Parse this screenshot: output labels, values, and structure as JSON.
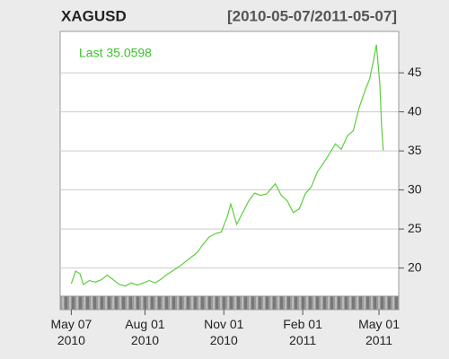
{
  "chart_data": {
    "type": "line",
    "title": "XAGUSD",
    "subtitle": "[2010-05-07/2011-05-07]",
    "annotation": "Last 35.0598",
    "x": [
      "2010-05-07",
      "2010-05-12",
      "2010-05-17",
      "2010-05-21",
      "2010-05-28",
      "2010-06-04",
      "2010-06-11",
      "2010-06-18",
      "2010-06-25",
      "2010-07-02",
      "2010-07-09",
      "2010-07-16",
      "2010-07-23",
      "2010-07-30",
      "2010-08-06",
      "2010-08-13",
      "2010-08-20",
      "2010-08-27",
      "2010-09-03",
      "2010-09-10",
      "2010-09-17",
      "2010-09-24",
      "2010-10-01",
      "2010-10-08",
      "2010-10-15",
      "2010-10-22",
      "2010-10-29",
      "2010-11-05",
      "2010-11-09",
      "2010-11-16",
      "2010-11-23",
      "2010-11-30",
      "2010-12-07",
      "2010-12-14",
      "2010-12-21",
      "2010-12-31",
      "2011-01-07",
      "2011-01-14",
      "2011-01-21",
      "2011-01-28",
      "2011-02-04",
      "2011-02-11",
      "2011-02-18",
      "2011-02-25",
      "2011-03-04",
      "2011-03-11",
      "2011-03-18",
      "2011-03-25",
      "2011-04-01",
      "2011-04-08",
      "2011-04-15",
      "2011-04-20",
      "2011-04-25",
      "2011-04-28",
      "2011-05-02",
      "2011-05-04",
      "2011-05-06"
    ],
    "series": [
      {
        "name": "XAGUSD",
        "color": "#5cce3c",
        "values": [
          18.0,
          19.6,
          19.3,
          17.9,
          18.4,
          18.2,
          18.5,
          19.1,
          18.5,
          17.9,
          17.7,
          18.1,
          17.8,
          18.1,
          18.4,
          18.1,
          18.6,
          19.2,
          19.7,
          20.2,
          20.8,
          21.4,
          22.0,
          23.1,
          24.0,
          24.4,
          24.6,
          26.6,
          28.2,
          25.6,
          27.1,
          28.6,
          29.6,
          29.3,
          29.5,
          30.8,
          29.3,
          28.6,
          27.1,
          27.6,
          29.5,
          30.4,
          32.3,
          33.4,
          34.6,
          35.9,
          35.2,
          36.9,
          37.6,
          40.6,
          42.8,
          44.2,
          46.8,
          48.6,
          43.5,
          38.2,
          35.06
        ]
      }
    ],
    "xlim": [
      "2010-04-24",
      "2011-05-24"
    ],
    "xticks": [
      {
        "value": "2010-05-07",
        "label": "May 07\n2010"
      },
      {
        "value": "2010-08-01",
        "label": "Aug 01\n2010"
      },
      {
        "value": "2010-11-01",
        "label": "Nov 01\n2010"
      },
      {
        "value": "2011-02-01",
        "label": "Feb 01\n2011"
      },
      {
        "value": "2011-05-01",
        "label": "May 01\n2011"
      }
    ],
    "ylim": [
      16.4,
      50.3
    ],
    "yticks": [
      20,
      25,
      30,
      35,
      40,
      45
    ],
    "grid": true
  }
}
